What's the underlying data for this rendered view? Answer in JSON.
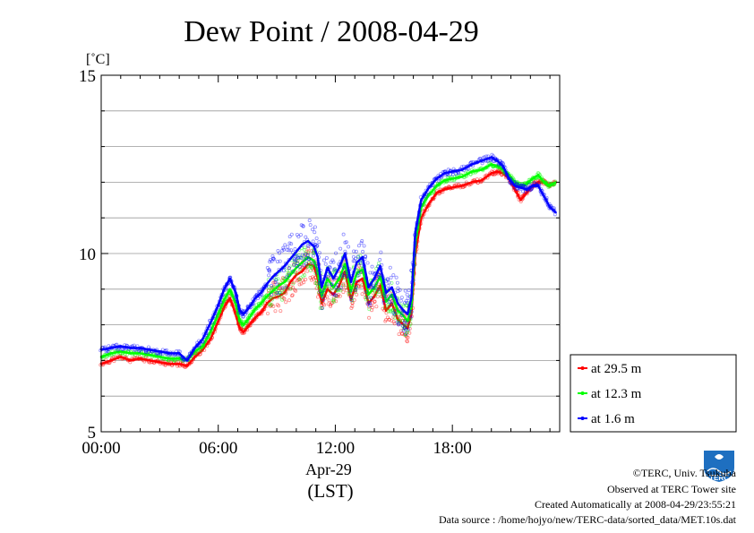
{
  "chart_data": {
    "type": "line",
    "title": "Dew Point / 2008-04-29",
    "ylabel": "[˚C]",
    "xlabel_date": "Apr-29",
    "xlabel_tz": "(LST)",
    "ylim": [
      5,
      15
    ],
    "yticks": [
      "15",
      "10",
      "5"
    ],
    "ytick_values": [
      15,
      10,
      5
    ],
    "xlim": [
      0,
      23.5
    ],
    "xticks": [
      "00:00",
      "06:00",
      "12:00",
      "18:00"
    ],
    "xtick_values": [
      0,
      6,
      12,
      18
    ],
    "grid": true,
    "legend_position": "bottom-right",
    "x": [
      0,
      0.5,
      1,
      1.5,
      2,
      2.5,
      3,
      3.5,
      4,
      4.4,
      4.8,
      5.2,
      5.6,
      6,
      6.3,
      6.6,
      6.9,
      7.1,
      7.3,
      7.6,
      7.9,
      8.2,
      8.5,
      8.8,
      9.1,
      9.4,
      9.7,
      10,
      10.3,
      10.6,
      10.9,
      11.1,
      11.3,
      11.6,
      11.9,
      12.2,
      12.5,
      12.8,
      13.1,
      13.4,
      13.7,
      14,
      14.3,
      14.6,
      14.9,
      15.2,
      15.5,
      15.7,
      15.9,
      16.1,
      16.4,
      16.8,
      17.2,
      17.6,
      18,
      18.5,
      19,
      19.5,
      20,
      20.3,
      20.6,
      20.9,
      21.2,
      21.5,
      21.8,
      22.1,
      22.4,
      22.7,
      23,
      23.3
    ],
    "series": [
      {
        "name": "at 29.5 m",
        "color": "#ff0000",
        "values": [
          6.9,
          7.0,
          7.1,
          7.0,
          7.05,
          7.0,
          6.95,
          6.9,
          6.9,
          6.85,
          7.1,
          7.3,
          7.6,
          8.1,
          8.5,
          8.75,
          8.3,
          7.9,
          7.8,
          8.0,
          8.2,
          8.35,
          8.6,
          8.75,
          8.8,
          8.9,
          9.2,
          9.4,
          9.5,
          9.7,
          9.65,
          9.3,
          8.6,
          9.0,
          8.85,
          9.1,
          9.5,
          8.7,
          9.2,
          9.3,
          8.6,
          8.8,
          9.1,
          8.4,
          8.6,
          8.15,
          8.0,
          7.9,
          8.3,
          10.0,
          11.0,
          11.4,
          11.7,
          11.8,
          11.85,
          11.9,
          12.0,
          12.05,
          12.25,
          12.3,
          12.25,
          12.1,
          11.8,
          11.5,
          11.7,
          11.9,
          12.0,
          12.0,
          11.9,
          12.0
        ]
      },
      {
        "name": "at 12.3 m",
        "color": "#00ff00",
        "values": [
          7.1,
          7.2,
          7.25,
          7.2,
          7.2,
          7.15,
          7.1,
          7.05,
          7.05,
          7.0,
          7.25,
          7.4,
          7.8,
          8.3,
          8.7,
          9.0,
          8.6,
          8.1,
          8.0,
          8.2,
          8.45,
          8.6,
          8.8,
          8.95,
          9.1,
          9.2,
          9.4,
          9.6,
          9.75,
          9.9,
          9.8,
          9.5,
          8.8,
          9.3,
          9.05,
          9.3,
          9.7,
          8.95,
          9.45,
          9.55,
          8.85,
          9.05,
          9.35,
          8.65,
          8.85,
          8.4,
          8.25,
          8.1,
          8.5,
          10.3,
          11.3,
          11.65,
          11.9,
          12.05,
          12.1,
          12.15,
          12.3,
          12.35,
          12.5,
          12.45,
          12.35,
          12.2,
          12.0,
          11.9,
          11.95,
          12.1,
          12.2,
          12.0,
          11.9,
          12.0
        ]
      },
      {
        "name": "at 1.6 m",
        "color": "#0000ff",
        "values": [
          7.3,
          7.35,
          7.4,
          7.35,
          7.35,
          7.3,
          7.25,
          7.2,
          7.2,
          7.0,
          7.35,
          7.6,
          8.05,
          8.55,
          9.0,
          9.3,
          8.9,
          8.4,
          8.3,
          8.5,
          8.75,
          8.9,
          9.15,
          9.35,
          9.5,
          9.65,
          9.85,
          10.05,
          10.25,
          10.35,
          10.2,
          9.9,
          9.05,
          9.6,
          9.3,
          9.6,
          10.0,
          9.2,
          9.75,
          9.9,
          9.05,
          9.3,
          9.65,
          8.9,
          9.05,
          8.6,
          8.4,
          8.3,
          8.75,
          10.6,
          11.5,
          11.85,
          12.1,
          12.25,
          12.3,
          12.35,
          12.5,
          12.6,
          12.7,
          12.6,
          12.45,
          12.1,
          11.9,
          11.85,
          11.8,
          11.9,
          11.9,
          11.6,
          11.3,
          11.15
        ]
      }
    ]
  },
  "logo": {
    "text": "TERC",
    "color": "#1e6fc0"
  },
  "footer": {
    "copyright": "©TERC, Univ. Tsukuba",
    "observed": "Observed at TERC Tower site",
    "created": "Created Automatically at 2008-04-29/23:55:21",
    "source": "Data source : /home/hojyo/new/TERC-data/sorted_data/MET.10s.dat"
  }
}
